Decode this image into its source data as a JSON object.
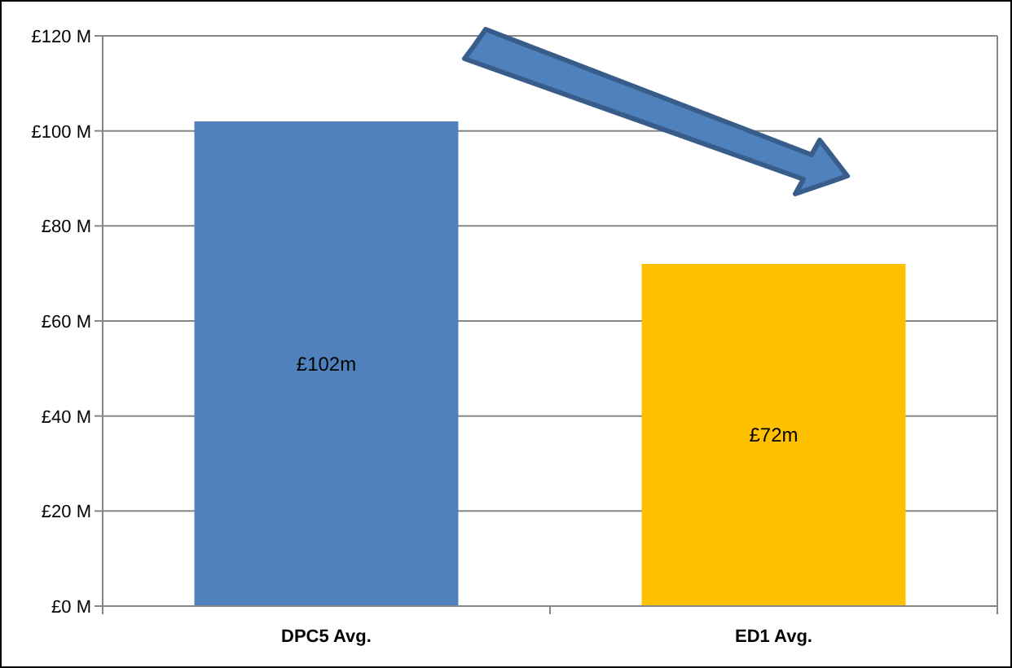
{
  "chart_data": {
    "type": "bar",
    "categories": [
      "DPC5 Avg.",
      "ED1 Avg."
    ],
    "values": [
      102,
      72
    ],
    "colors": [
      "#4f81bd",
      "#ffc000"
    ],
    "value_labels": [
      "£102m",
      "£72m"
    ],
    "ylim": [
      0,
      120
    ],
    "yticks": [
      {
        "value": 0,
        "label": "£0 M"
      },
      {
        "value": 20,
        "label": "£20 M"
      },
      {
        "value": 40,
        "label": "£40 M"
      },
      {
        "value": 60,
        "label": "£60 M"
      },
      {
        "value": 80,
        "label": "£80 M"
      },
      {
        "value": 100,
        "label": "£100 M"
      },
      {
        "value": 120,
        "label": "£120 M"
      }
    ],
    "grid": "y"
  }
}
